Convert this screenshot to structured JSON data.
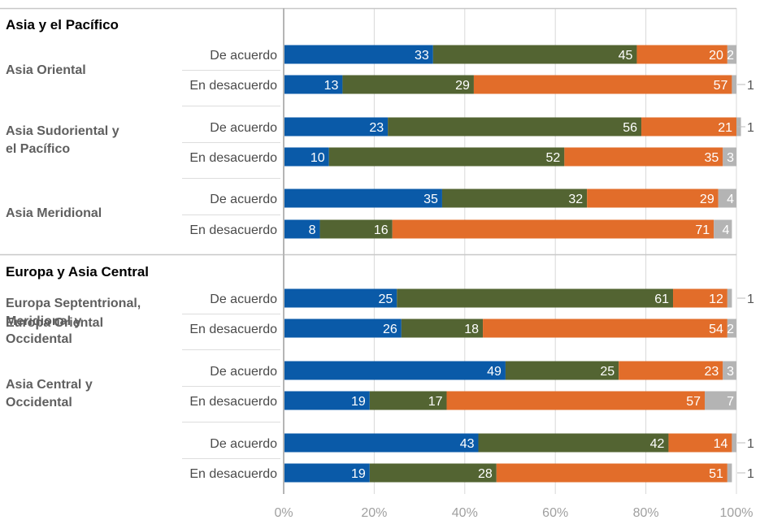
{
  "chart_data": {
    "type": "bar",
    "orientation": "horizontal-stacked-percent",
    "x_ticks": [
      "0%",
      "20%",
      "40%",
      "60%",
      "80%",
      "100%"
    ],
    "xlim": [
      0,
      100
    ],
    "grid": true,
    "legend": "none",
    "colors": [
      "#0a5aa8",
      "#536432",
      "#e26d2a",
      "#b4b4b4"
    ],
    "groups": [
      {
        "title": "Asia y el Pacífico",
        "subgroups": [
          {
            "label": "Asia Oriental",
            "rows": [
              {
                "label": "De acuerdo",
                "values": [
                  33,
                  45,
                  20,
                  2
                ]
              },
              {
                "label": "En desacuerdo",
                "values": [
                  13,
                  29,
                  57,
                  1
                ]
              }
            ]
          },
          {
            "label": "Asia Sudoriental y el Pacífico",
            "rows": [
              {
                "label": "De acuerdo",
                "values": [
                  23,
                  56,
                  21,
                  1
                ]
              },
              {
                "label": "En desacuerdo",
                "values": [
                  10,
                  52,
                  35,
                  3
                ]
              }
            ]
          },
          {
            "label": "Asia Meridional",
            "rows": [
              {
                "label": "De acuerdo",
                "values": [
                  35,
                  32,
                  29,
                  4
                ]
              },
              {
                "label": "En desacuerdo",
                "values": [
                  8,
                  16,
                  71,
                  4
                ]
              }
            ]
          }
        ]
      },
      {
        "title": "Europa y Asia Central",
        "subgroups": [
          {
            "label": "Europa Septentrional, Meridional y Occidental",
            "rows": [
              {
                "label": "De acuerdo",
                "values": [
                  25,
                  61,
                  12,
                  1
                ]
              },
              {
                "label": "En desacuerdo",
                "values": [
                  26,
                  18,
                  54,
                  2
                ]
              }
            ]
          },
          {
            "label": "Europa Oriental",
            "rows": [
              {
                "label": "De acuerdo",
                "values": [
                  49,
                  25,
                  23,
                  3
                ]
              },
              {
                "label": "En desacuerdo",
                "values": [
                  19,
                  17,
                  57,
                  7
                ]
              }
            ]
          },
          {
            "label": "Asia Central y Occidental",
            "rows": [
              {
                "label": "De acuerdo",
                "values": [
                  43,
                  42,
                  14,
                  1
                ]
              },
              {
                "label": "En desacuerdo",
                "values": [
                  19,
                  28,
                  51,
                  1
                ]
              }
            ]
          }
        ]
      }
    ]
  }
}
